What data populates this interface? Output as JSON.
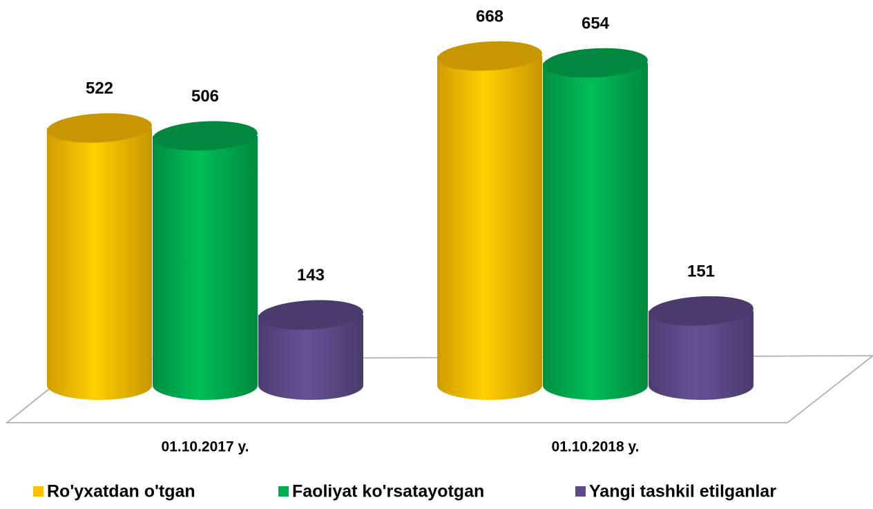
{
  "chart_data": {
    "type": "bar3d",
    "categories": [
      "01.10.2017 y.",
      "01.10.2018 y."
    ],
    "series": [
      {
        "name": "Ro'yxatdan o'tgan",
        "color": "#ffc000",
        "values": [
          522,
          668
        ]
      },
      {
        "name": "Faoliyat ko'rsatayotgan",
        "color": "#00b050",
        "values": [
          506,
          654
        ]
      },
      {
        "name": "Yangi tashkil etilganlar",
        "color": "#5f4b8b",
        "values": [
          143,
          151
        ]
      }
    ]
  }
}
